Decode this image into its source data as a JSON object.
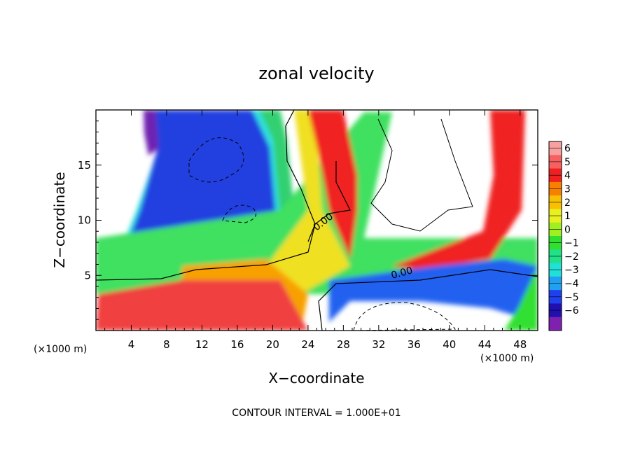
{
  "chart_data": {
    "type": "heatmap",
    "title": "zonal velocity",
    "xlabel": "X−coordinate",
    "ylabel": "Z−coordinate",
    "x_unit_label": "(×1000 m)",
    "z_unit_label": "(×1000 m)",
    "footer": "CONTOUR INTERVAL = 1.000E+01",
    "xlim": [
      0,
      50
    ],
    "zlim": [
      0,
      20
    ],
    "x_ticks": [
      4,
      8,
      12,
      16,
      20,
      24,
      28,
      32,
      36,
      40,
      44,
      48
    ],
    "z_ticks": [
      5,
      10,
      15
    ],
    "contour_labels": [
      "0.00",
      "0.00"
    ],
    "colorbar": {
      "levels": [
        "6",
        "5",
        "4",
        "3",
        "2",
        "1",
        "0",
        "−1",
        "−2",
        "−3",
        "−4",
        "−5",
        "−6"
      ],
      "colors": [
        "#f8a0a0",
        "#f76060",
        "#f02020",
        "#f88000",
        "#f8c000",
        "#e8f020",
        "#a0f020",
        "#30e030",
        "#20e088",
        "#20e0d8",
        "#20a0f0",
        "#2040f0",
        "#2010b0",
        "#8020b0"
      ]
    }
  }
}
